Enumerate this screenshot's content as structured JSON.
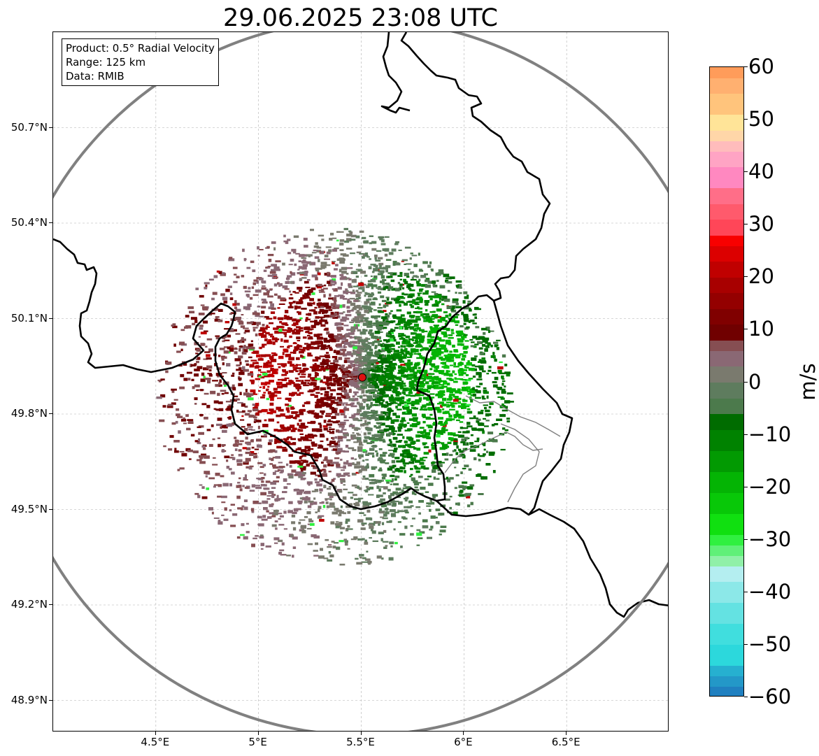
{
  "title": "29.06.2025 23:08 UTC",
  "info": {
    "product": "Product: 0.5° Radial Velocity",
    "range": "Range: 125 km",
    "data": "Data: RMIB"
  },
  "map": {
    "lon_range": [
      4.0,
      7.0
    ],
    "lat_range": [
      48.8,
      51.0
    ],
    "radar_site": {
      "lon": 5.505,
      "lat": 49.915
    },
    "range_ring_km": 125,
    "lat_ticks": [
      {
        "value": 48.9,
        "label": "48.9°N"
      },
      {
        "value": 49.2,
        "label": "49.2°N"
      },
      {
        "value": 49.5,
        "label": "49.5°N"
      },
      {
        "value": 49.8,
        "label": "49.8°N"
      },
      {
        "value": 50.1,
        "label": "50.1°N"
      },
      {
        "value": 50.4,
        "label": "50.4°N"
      },
      {
        "value": 50.7,
        "label": "50.7°N"
      }
    ],
    "lon_ticks": [
      {
        "value": 4.5,
        "label": "4.5°E"
      },
      {
        "value": 5.0,
        "label": "5°E"
      },
      {
        "value": 5.5,
        "label": "5.5°E"
      },
      {
        "value": 6.0,
        "label": "6°E"
      },
      {
        "value": 6.5,
        "label": "6.5°E"
      }
    ],
    "colors": {
      "border": "#000000",
      "range_ring": "#808080",
      "gridline": "#b0b0b0",
      "radar_marker": "#dd1111"
    }
  },
  "colorbar": {
    "unit": "m/s",
    "min": -60,
    "max": 60,
    "ticks": [
      {
        "value": 60,
        "label": "60"
      },
      {
        "value": 50,
        "label": "50"
      },
      {
        "value": 40,
        "label": "40"
      },
      {
        "value": 30,
        "label": "30"
      },
      {
        "value": 20,
        "label": "20"
      },
      {
        "value": 10,
        "label": "10"
      },
      {
        "value": 0,
        "label": "0"
      },
      {
        "value": -10,
        "label": "−10"
      },
      {
        "value": -20,
        "label": "−20"
      },
      {
        "value": -30,
        "label": "−30"
      },
      {
        "value": -40,
        "label": "−40"
      },
      {
        "value": -50,
        "label": "−50"
      },
      {
        "value": -60,
        "label": "−60"
      }
    ],
    "stops": [
      {
        "from": -60,
        "to": -58,
        "color": "#2080c0"
      },
      {
        "from": -58,
        "to": -56,
        "color": "#2398c8"
      },
      {
        "from": -56,
        "to": -54,
        "color": "#26b0d0"
      },
      {
        "from": -54,
        "to": -50,
        "color": "#2cd8dc"
      },
      {
        "from": -50,
        "to": -46,
        "color": "#40dede"
      },
      {
        "from": -46,
        "to": -42,
        "color": "#64e2e2"
      },
      {
        "from": -42,
        "to": -38,
        "color": "#8ce8e8"
      },
      {
        "from": -38,
        "to": -35,
        "color": "#b4eef0"
      },
      {
        "from": -35,
        "to": -33,
        "color": "#90f0a8"
      },
      {
        "from": -33,
        "to": -31,
        "color": "#60f078"
      },
      {
        "from": -31,
        "to": -29,
        "color": "#30f040"
      },
      {
        "from": -29,
        "to": -25,
        "color": "#10e010"
      },
      {
        "from": -25,
        "to": -21,
        "color": "#08c808"
      },
      {
        "from": -21,
        "to": -17,
        "color": "#04b404"
      },
      {
        "from": -17,
        "to": -13,
        "color": "#029a02"
      },
      {
        "from": -13,
        "to": -9,
        "color": "#008200"
      },
      {
        "from": -9,
        "to": -6,
        "color": "#006c00"
      },
      {
        "from": -6,
        "to": -3,
        "color": "#4c7a4c"
      },
      {
        "from": -3,
        "to": 0,
        "color": "#5e7c5e"
      },
      {
        "from": 0,
        "to": 3,
        "color": "#7a7a6e"
      },
      {
        "from": 3,
        "to": 6,
        "color": "#8a6874"
      },
      {
        "from": 6,
        "to": 8,
        "color": "#864e52"
      },
      {
        "from": 8,
        "to": 11,
        "color": "#700000"
      },
      {
        "from": 11,
        "to": 14,
        "color": "#800000"
      },
      {
        "from": 14,
        "to": 17,
        "color": "#940000"
      },
      {
        "from": 17,
        "to": 20,
        "color": "#a80000"
      },
      {
        "from": 20,
        "to": 23,
        "color": "#c00000"
      },
      {
        "from": 23,
        "to": 26,
        "color": "#dc0000"
      },
      {
        "from": 26,
        "to": 28,
        "color": "#f80000"
      },
      {
        "from": 28,
        "to": 31,
        "color": "#ff4658"
      },
      {
        "from": 31,
        "to": 34,
        "color": "#ff5a6c"
      },
      {
        "from": 34,
        "to": 37,
        "color": "#ff6e88"
      },
      {
        "from": 37,
        "to": 41,
        "color": "#ff88c0"
      },
      {
        "from": 41,
        "to": 44,
        "color": "#ffa4c4"
      },
      {
        "from": 44,
        "to": 46,
        "color": "#ffbcbc"
      },
      {
        "from": 46,
        "to": 48,
        "color": "#ffd6a8"
      },
      {
        "from": 48,
        "to": 51,
        "color": "#ffe498"
      },
      {
        "from": 51,
        "to": 55,
        "color": "#ffc47c"
      },
      {
        "from": 55,
        "to": 58,
        "color": "#ffb070"
      },
      {
        "from": 58,
        "to": 60,
        "color": "#ff9c5a"
      }
    ]
  }
}
